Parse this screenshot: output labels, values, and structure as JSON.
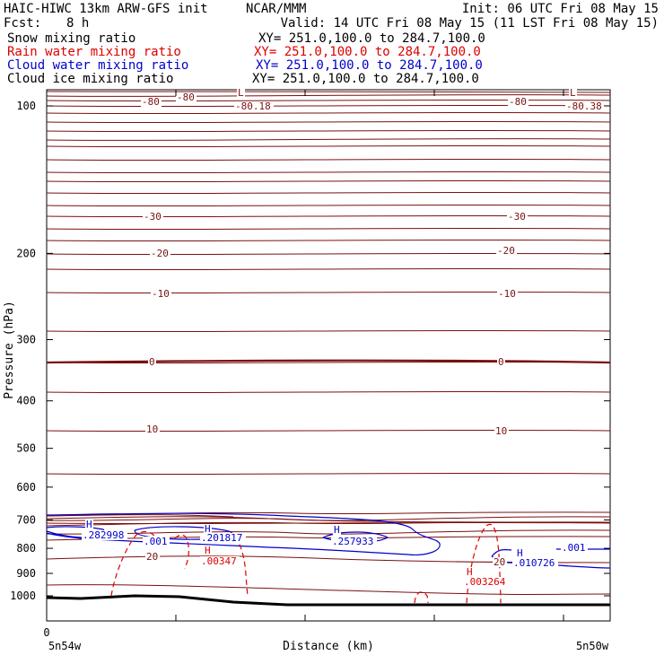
{
  "header": {
    "title_left": "HAIC-HIWC 13km ARW-GFS init",
    "title_org": "NCAR/MMM",
    "init": "Init: 06 UTC Fri 08 May 15",
    "fcst_label": "Fcst:",
    "fcst_value": "8 h",
    "valid": "Valid: 14 UTC Fri 08 May 15 (11 LST Fri 08 May 15)"
  },
  "fields": [
    {
      "name": "Snow mixing ratio",
      "xy": "XY= 251.0,100.0 to 284.7,100.0",
      "color": "#000000"
    },
    {
      "name": "Rain water mixing ratio",
      "xy": "XY= 251.0,100.0 to 284.7,100.0",
      "color": "#dd0000"
    },
    {
      "name": "Cloud water mixing ratio",
      "xy": "XY= 251.0,100.0 to 284.7,100.0",
      "color": "#0000cc"
    },
    {
      "name": "Cloud ice mixing ratio",
      "xy": "XY= 251.0,100.0 to 284.7,100.0",
      "color": "#000000"
    }
  ],
  "chart_data": {
    "type": "line",
    "xlabel": "Distance (km)",
    "ylabel": "Pressure (hPa)",
    "x_tick_labels": [
      "0",
      "5n54w",
      "5n50w"
    ],
    "y_ticks": [
      100,
      200,
      300,
      400,
      500,
      600,
      700,
      800,
      900,
      1000
    ],
    "ylim": [
      1040,
      50
    ],
    "y_scale": "log-pressure",
    "temperature_contours": {
      "color": "#7a1010",
      "levels": [
        -80,
        -70,
        -60,
        -50,
        -40,
        -30,
        -20,
        -10,
        0,
        10,
        20
      ],
      "labels": [
        {
          "text": "-80",
          "color": "#7a1010"
        },
        {
          "text": "-80",
          "color": "#7a1010"
        },
        {
          "text": "L",
          "color": "#7a1010"
        },
        {
          "text": "-80.18",
          "color": "#7a1010"
        },
        {
          "text": "-80",
          "color": "#7a1010"
        },
        {
          "text": "L",
          "color": "#7a1010"
        },
        {
          "text": "-80.38",
          "color": "#7a1010"
        },
        {
          "text": "-30",
          "color": "#7a1010"
        },
        {
          "text": "-30",
          "color": "#7a1010"
        },
        {
          "text": "-20",
          "color": "#7a1010"
        },
        {
          "text": "-20",
          "color": "#7a1010"
        },
        {
          "text": "-10",
          "color": "#7a1010"
        },
        {
          "text": "-10",
          "color": "#7a1010"
        },
        {
          "text": "0",
          "color": "#7a1010"
        },
        {
          "text": "0",
          "color": "#7a1010"
        },
        {
          "text": "10",
          "color": "#7a1010"
        },
        {
          "text": "10",
          "color": "#7a1010"
        },
        {
          "text": "20",
          "color": "#7a1010"
        },
        {
          "text": "20",
          "color": "#7a1010"
        }
      ]
    },
    "cloud_water_labels": [
      {
        "text": "H",
        "color": "#0000cc"
      },
      {
        "text": ".282998",
        "color": "#0000cc"
      },
      {
        "text": ".001",
        "color": "#0000cc"
      },
      {
        "text": "H",
        "color": "#0000cc"
      },
      {
        "text": ".201817",
        "color": "#0000cc"
      },
      {
        "text": "H",
        "color": "#0000cc"
      },
      {
        "text": ".257933",
        "color": "#0000cc"
      },
      {
        "text": "H",
        "color": "#0000cc"
      },
      {
        "text": ".010726",
        "color": "#0000cc"
      },
      {
        "text": ".001",
        "color": "#0000cc"
      }
    ],
    "rain_water_labels": [
      {
        "text": "H",
        "color": "#dd0000"
      },
      {
        "text": ".00347",
        "color": "#dd0000"
      },
      {
        "text": "H",
        "color": "#dd0000"
      },
      {
        "text": ".003264",
        "color": "#dd0000"
      }
    ]
  }
}
